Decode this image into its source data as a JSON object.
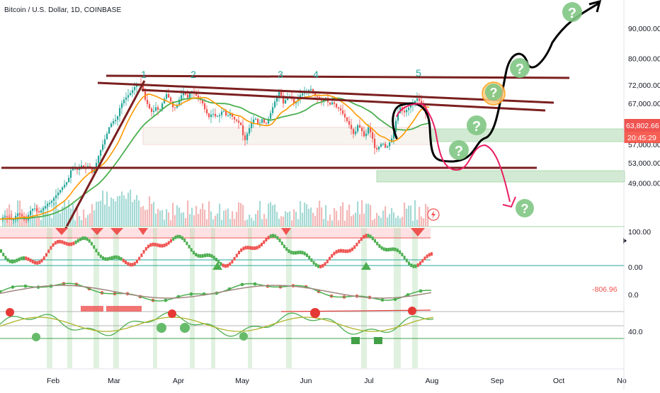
{
  "header": {
    "symbol_title": "Bitcoin / U.S. Dollar, 1D, COINBASE"
  },
  "colors": {
    "bull": "#26a69a",
    "bear": "#ef5350",
    "ma_orange": "#ff9800",
    "ma_green": "#4caf50",
    "trendline": "#7b1f1f",
    "zone_green": "#c8e6c9",
    "zone_red": "#ffcdd2",
    "projection_black": "#000000",
    "projection_red": "#e91e63",
    "price_tag": "#ef5350",
    "axis_text": "#131722"
  },
  "chart_data": [
    {
      "type": "line",
      "name": "price",
      "scale": "log",
      "ylim": [
        44000,
        96000
      ],
      "y_ticks": [
        {
          "value": 90000,
          "label": "90,000.00"
        },
        {
          "value": 80000,
          "label": "80,000.00"
        },
        {
          "value": 72000,
          "label": "72,000.00"
        },
        {
          "value": 67000,
          "label": "67,000.00"
        },
        {
          "value": 57000,
          "label": "57,000.00"
        },
        {
          "value": 53000,
          "label": "53,000.00"
        },
        {
          "value": 49000,
          "label": "49,000.00"
        }
      ],
      "x_ticks": [
        "Feb",
        "Mar",
        "Apr",
        "May",
        "Jun",
        "Jul",
        "Aug",
        "Sep",
        "Oct",
        "No"
      ],
      "series": [
        {
          "points": [
            [
              0,
              42500
            ],
            [
              6,
              43000
            ],
            [
              12,
              42800
            ],
            [
              18,
              42200
            ],
            [
              24,
              43500
            ],
            [
              30,
              43200
            ],
            [
              36,
              42000
            ],
            [
              42,
              43800
            ],
            [
              48,
              44500
            ],
            [
              54,
              43500
            ],
            [
              60,
              44200
            ],
            [
              66,
              45000
            ],
            [
              72,
              45500
            ],
            [
              78,
              46500
            ],
            [
              84,
              47500
            ],
            [
              90,
              48500
            ],
            [
              96,
              49500
            ],
            [
              100,
              51500
            ],
            [
              105,
              52000
            ],
            [
              110,
              51500
            ],
            [
              115,
              52500
            ],
            [
              120,
              51800
            ],
            [
              125,
              52500
            ],
            [
              130,
              51000
            ],
            [
              135,
              52500
            ],
            [
              140,
              55000
            ],
            [
              145,
              57000
            ],
            [
              150,
              59000
            ],
            [
              155,
              61500
            ],
            [
              160,
              62500
            ],
            [
              165,
              63000
            ],
            [
              170,
              66500
            ],
            [
              175,
              68000
            ],
            [
              180,
              69000
            ],
            [
              185,
              70000
            ],
            [
              190,
              71500
            ],
            [
              195,
              72500
            ],
            [
              200,
              71800
            ],
            [
              205,
              68000
            ],
            [
              210,
              66000
            ],
            [
              215,
              64500
            ],
            [
              220,
              66000
            ],
            [
              225,
              65000
            ],
            [
              230,
              67500
            ],
            [
              235,
              69500
            ],
            [
              240,
              68000
            ],
            [
              245,
              65500
            ],
            [
              250,
              66500
            ],
            [
              255,
              69000
            ],
            [
              260,
              70000
            ],
            [
              265,
              68500
            ],
            [
              270,
              70500
            ],
            [
              275,
              69500
            ],
            [
              280,
              68500
            ],
            [
              285,
              67500
            ],
            [
              290,
              65000
            ],
            [
              295,
              63500
            ],
            [
              300,
              64500
            ],
            [
              305,
              63500
            ],
            [
              310,
              64000
            ],
            [
              315,
              65500
            ],
            [
              320,
              63500
            ],
            [
              325,
              64500
            ],
            [
              330,
              63000
            ],
            [
              335,
              62500
            ],
            [
              340,
              61500
            ],
            [
              345,
              57500
            ],
            [
              350,
              60000
            ],
            [
              355,
              62000
            ],
            [
              360,
              63500
            ],
            [
              365,
              61500
            ],
            [
              370,
              63000
            ],
            [
              375,
              61500
            ],
            [
              380,
              63500
            ],
            [
              385,
              66000
            ],
            [
              390,
              68500
            ],
            [
              395,
              70500
            ],
            [
              400,
              67000
            ],
            [
              405,
              68500
            ],
            [
              410,
              69000
            ],
            [
              415,
              67000
            ],
            [
              420,
              68000
            ],
            [
              425,
              69500
            ],
            [
              430,
              70000
            ],
            [
              435,
              70500
            ],
            [
              440,
              71000
            ],
            [
              445,
              69000
            ],
            [
              450,
              68500
            ],
            [
              455,
              67500
            ],
            [
              460,
              68500
            ],
            [
              465,
              66500
            ],
            [
              470,
              67500
            ],
            [
              475,
              66000
            ],
            [
              480,
              65500
            ],
            [
              485,
              64000
            ],
            [
              490,
              62500
            ],
            [
              495,
              61000
            ],
            [
              500,
              59000
            ],
            [
              505,
              61500
            ],
            [
              510,
              60500
            ],
            [
              515,
              58500
            ],
            [
              520,
              61000
            ],
            [
              525,
              59000
            ],
            [
              530,
              55500
            ],
            [
              535,
              56500
            ],
            [
              540,
              57500
            ],
            [
              545,
              56000
            ],
            [
              550,
              57500
            ],
            [
              555,
              59000
            ],
            [
              560,
              63500
            ],
            [
              565,
              66000
            ],
            [
              570,
              64500
            ],
            [
              575,
              65500
            ],
            [
              580,
              66500
            ],
            [
              585,
              67500
            ],
            [
              590,
              68500
            ],
            [
              595,
              66500
            ],
            [
              600,
              64500
            ],
            [
              605,
              63800
            ]
          ]
        }
      ]
    }
  ],
  "price_labels": {
    "last_price": "63,802.66",
    "countdown": "20:45:29"
  },
  "oscillator_axis": {
    "ticks": [
      {
        "label": "100.00"
      },
      {
        "label": "0.00"
      },
      {
        "label": "0.0"
      },
      {
        "label": "40.0"
      }
    ],
    "value_readout": "-806.96"
  },
  "annotations": {
    "wave_labels": [
      "1",
      "2",
      "3",
      "4",
      "5"
    ],
    "question_mark": "?"
  }
}
